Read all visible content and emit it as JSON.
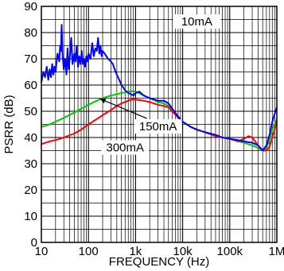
{
  "chart_data": {
    "type": "line",
    "title": "",
    "xlabel": "FREQUENCY (Hz)",
    "ylabel": "PSRR (dB)",
    "xscale": "log",
    "xlim": [
      10,
      1000000
    ],
    "ylim": [
      0,
      90
    ],
    "grid": true,
    "x_ticks": [
      {
        "value": 10,
        "label": "10"
      },
      {
        "value": 100,
        "label": "100"
      },
      {
        "value": 1000,
        "label": "1k"
      },
      {
        "value": 10000,
        "label": "10k"
      },
      {
        "value": 100000,
        "label": "100k"
      },
      {
        "value": 1000000,
        "label": "1M"
      }
    ],
    "y_ticks": [
      {
        "value": 0,
        "label": "0"
      },
      {
        "value": 10,
        "label": "10"
      },
      {
        "value": 20,
        "label": "20"
      },
      {
        "value": 30,
        "label": "30"
      },
      {
        "value": 40,
        "label": "40"
      },
      {
        "value": 50,
        "label": "50"
      },
      {
        "value": 60,
        "label": "60"
      },
      {
        "value": 70,
        "label": "70"
      },
      {
        "value": 80,
        "label": "80"
      },
      {
        "value": 90,
        "label": "90"
      }
    ],
    "series": [
      {
        "name": "10mA",
        "color": "#0000ff",
        "x": [
          10,
          11,
          12,
          13,
          14,
          15,
          16,
          17,
          18,
          19,
          20,
          22,
          24,
          25,
          26,
          27,
          28,
          30,
          32,
          34,
          36,
          38,
          40,
          43,
          46,
          50,
          53,
          56,
          60,
          64,
          68,
          72,
          76,
          80,
          85,
          90,
          95,
          100,
          110,
          120,
          130,
          140,
          150,
          160,
          170,
          180,
          190,
          200,
          220,
          240,
          260,
          280,
          300,
          330,
          360,
          400,
          450,
          500,
          550,
          600,
          700,
          800,
          900,
          1000,
          1200,
          1500,
          2000,
          2500,
          3000,
          4000,
          5000,
          6000,
          8000,
          10000,
          15000,
          20000,
          30000,
          50000,
          70000,
          100000,
          150000,
          200000,
          300000,
          400000,
          500000,
          600000,
          700000,
          800000,
          900000,
          1000000
        ],
        "y": [
          61,
          65,
          63,
          67,
          62,
          66,
          63,
          68,
          64,
          67,
          65,
          72,
          69,
          75,
          73,
          83,
          72,
          66,
          70,
          64,
          74,
          66,
          70,
          78,
          68,
          72,
          69,
          75,
          67,
          71,
          68,
          73,
          68,
          70,
          67,
          71,
          69,
          72,
          70,
          76,
          71,
          74,
          73,
          78,
          72,
          75,
          71,
          73,
          72,
          71,
          70,
          69.5,
          69,
          68,
          66,
          64,
          62,
          60,
          59,
          58,
          57,
          56.5,
          56,
          57,
          57.5,
          56,
          55,
          54.5,
          54,
          54,
          53,
          51,
          48,
          46,
          44,
          43,
          42,
          41,
          40,
          39.5,
          39,
          38.5,
          38,
          37,
          35,
          37,
          41,
          46,
          49,
          51.5
        ]
      },
      {
        "name": "150mA",
        "color": "#00cc00",
        "x": [
          10,
          15,
          20,
          30,
          50,
          70,
          100,
          150,
          200,
          300,
          400,
          500,
          600,
          700,
          800,
          900,
          1000,
          1500,
          2000,
          3000,
          4000,
          5000,
          6000,
          8000,
          10000,
          15000,
          20000,
          30000,
          50000,
          70000,
          100000,
          150000,
          200000,
          300000,
          400000,
          500000,
          600000,
          700000,
          800000,
          1000000
        ],
        "y": [
          44,
          45,
          46,
          47.5,
          49.5,
          51,
          52.5,
          54,
          55,
          56,
          56.5,
          57,
          57.2,
          57.5,
          57.6,
          57.7,
          57.5,
          56,
          55,
          53.5,
          53,
          52,
          50.5,
          48,
          46,
          44,
          43,
          42,
          40.5,
          40,
          39.5,
          38.5,
          38,
          37,
          36,
          35,
          36,
          39,
          43,
          47
        ]
      },
      {
        "name": "300mA",
        "color": "#ff0000",
        "x": [
          10,
          15,
          20,
          30,
          50,
          70,
          100,
          150,
          200,
          300,
          400,
          500,
          600,
          700,
          800,
          900,
          1000,
          1500,
          2000,
          3000,
          4000,
          5000,
          6000,
          8000,
          10000,
          15000,
          20000,
          30000,
          50000,
          70000,
          100000,
          150000,
          200000,
          250000,
          300000,
          400000,
          500000,
          600000,
          700000,
          800000,
          1000000
        ],
        "y": [
          37.5,
          38.5,
          39,
          40,
          41.5,
          43,
          45,
          47,
          48.5,
          50.5,
          52,
          53,
          53.5,
          54,
          54.5,
          54.5,
          54.5,
          54,
          53.5,
          52.5,
          52,
          51.5,
          50,
          47.5,
          46,
          44,
          43,
          42,
          40.5,
          40,
          39.5,
          38.5,
          39.5,
          40.5,
          40,
          37,
          35,
          35,
          36.5,
          40,
          46
        ]
      }
    ],
    "annotations": [
      {
        "text": "10mA",
        "x": 20000,
        "y": 83
      },
      {
        "text": "150mA",
        "x": 3000,
        "y": 43
      },
      {
        "text": "300mA",
        "x": 600,
        "y": 35
      }
    ]
  }
}
